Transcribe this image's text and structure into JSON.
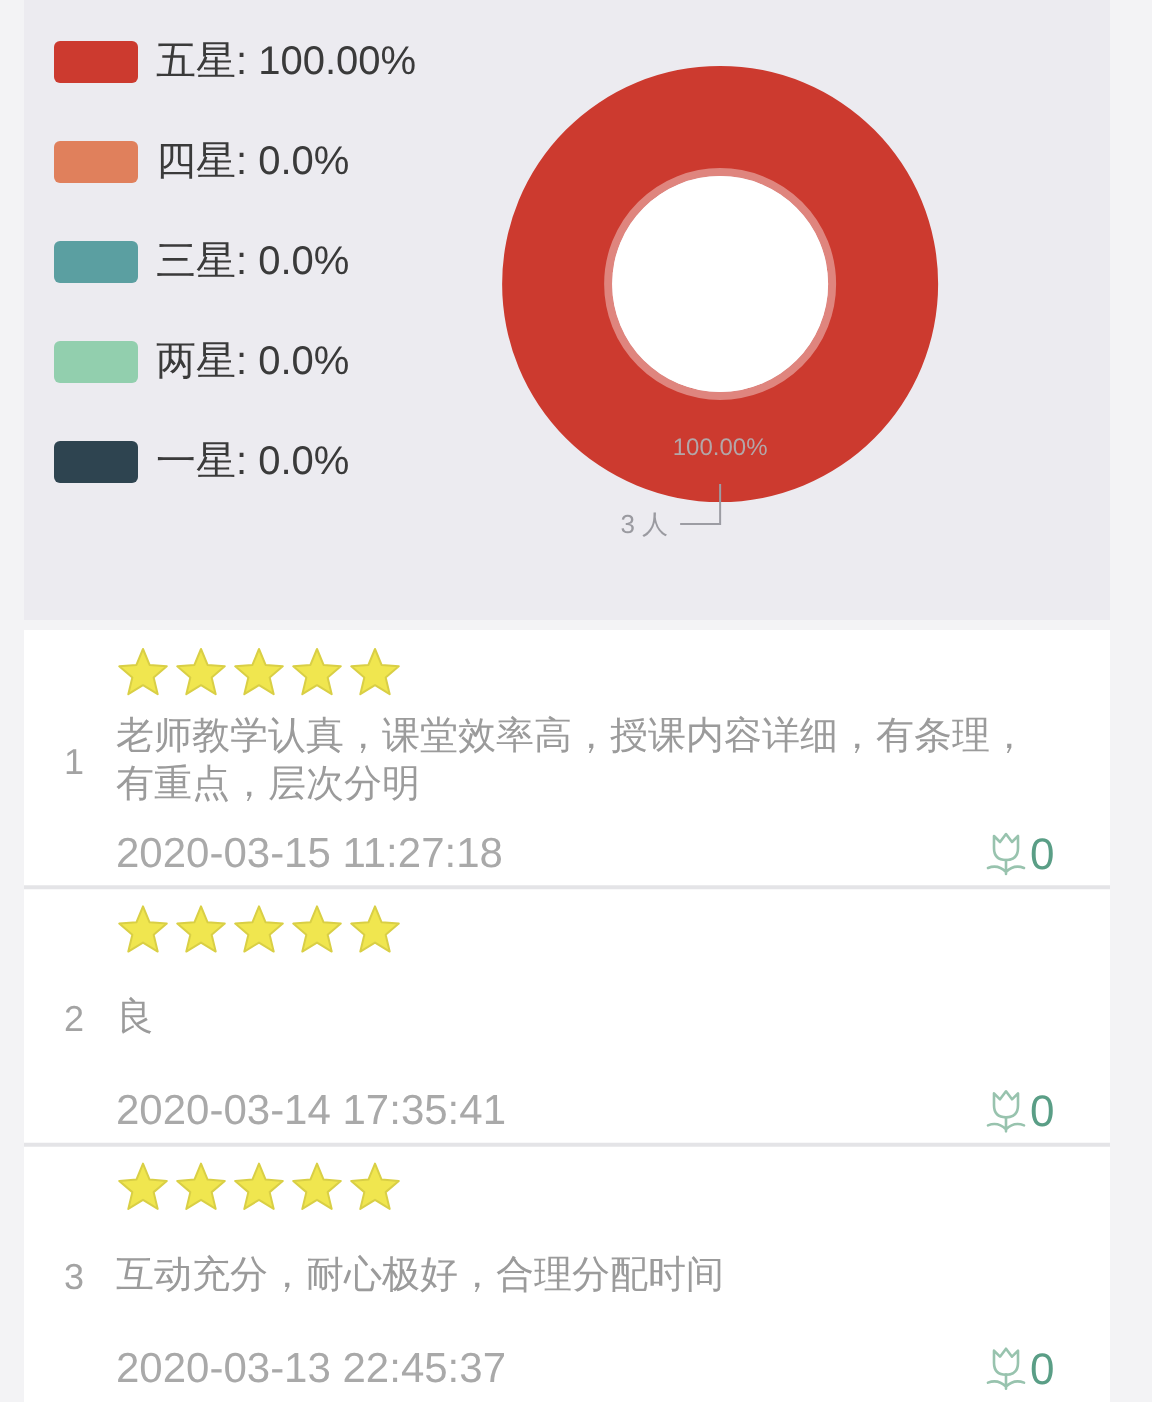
{
  "chart_data": [
    {
      "type": "donut",
      "categories": [
        "五星",
        "四星",
        "三星",
        "两星",
        "一星"
      ],
      "values": [
        100,
        0,
        0,
        0,
        0
      ],
      "colors": [
        "#cc3a2f",
        "#e0805c",
        "#5b9fa1",
        "#92cfae",
        "#2e4450"
      ],
      "value_labels": [
        "100.00%",
        "0.0%",
        "0.0%",
        "0.0%",
        "0.0%"
      ],
      "legend": "top left",
      "annotations": [
        "3 人"
      ]
    },
    {
      "type": "other",
      "annotations": [
        "1",
        "老师教学认真，课堂效率高，授课内容详细，有条理，有重点，层次分明",
        "2020-03-15 11:27:18",
        "0",
        "2",
        "良",
        "2020-03-14 17:35:41",
        "0",
        "3",
        "互动充分，耐心极好，合理分配时间",
        "2020-03-13 22:45:37",
        "0"
      ]
    }
  ]
}
